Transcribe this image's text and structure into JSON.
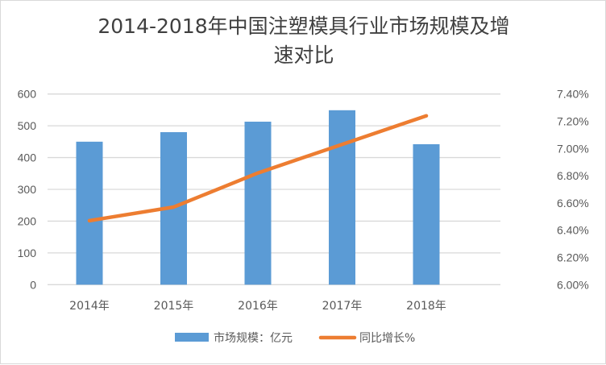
{
  "chart_data": {
    "type": "bar+line",
    "title_line1": "2014-2018年中国注塑模具行业市场规模及增",
    "title_line2": "速对比",
    "categories": [
      "2014年",
      "2015年",
      "2016年",
      "2017年",
      "2018年"
    ],
    "series": [
      {
        "name": "市场规模：亿元",
        "type": "bar",
        "axis": "left",
        "color": "#5b9bd5",
        "values": [
          450,
          480,
          513,
          549,
          442
        ]
      },
      {
        "name": "同比增长%",
        "type": "line",
        "axis": "right",
        "color": "#ed7d31",
        "values": [
          6.47,
          6.57,
          6.82,
          7.03,
          7.24
        ]
      }
    ],
    "y_left": {
      "ylim": [
        0,
        600
      ],
      "ticks": [
        "0",
        "100",
        "200",
        "300",
        "400",
        "500",
        "600"
      ]
    },
    "y_right": {
      "ylim": [
        6.0,
        7.4
      ],
      "ticks": [
        "6.00%",
        "6.20%",
        "6.40%",
        "6.60%",
        "6.80%",
        "7.00%",
        "7.20%",
        "7.40%"
      ]
    },
    "grid": true,
    "legend": "bottom"
  }
}
